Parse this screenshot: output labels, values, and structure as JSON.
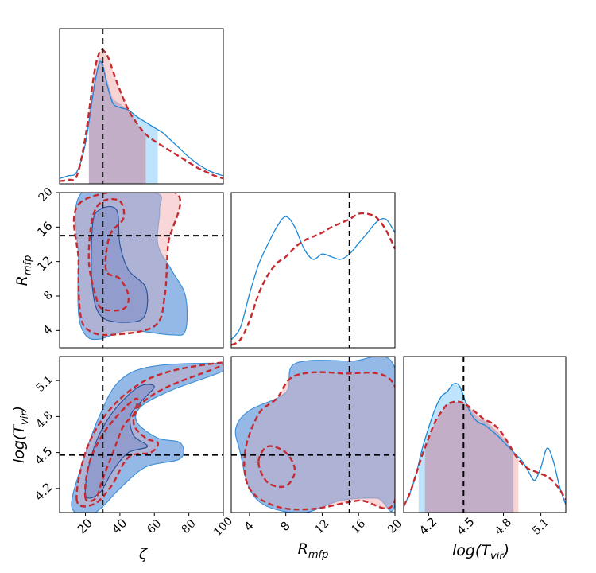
{
  "chart_data": {
    "type": "corner",
    "parameters": [
      {
        "name": "zeta",
        "label": "ζ",
        "truth": 30,
        "range": [
          5,
          100
        ],
        "ticks": [
          20,
          40,
          60,
          80,
          100
        ],
        "tick_labels": [
          "20",
          "40",
          "60",
          "80",
          "100"
        ]
      },
      {
        "name": "R_mfp",
        "label": "R",
        "label_sub": "mfp",
        "truth": 15,
        "range": [
          2,
          20
        ],
        "ticks": [
          4,
          8,
          12,
          16,
          20
        ],
        "tick_labels": [
          "4",
          "8",
          "12",
          "16",
          "20"
        ]
      },
      {
        "name": "log_T_vir",
        "label": "log(T",
        "label_sub": "vir",
        "label_close": ")",
        "truth": 4.48,
        "range": [
          4.0,
          5.3
        ],
        "ticks": [
          4.2,
          4.5,
          4.8,
          5.1
        ],
        "tick_labels": [
          "4.2",
          "4.5",
          "4.8",
          "5.1"
        ]
      }
    ],
    "series": [
      {
        "name": "blue",
        "color": "#1b87d6",
        "fill": "#87cefa",
        "style": "solid"
      },
      {
        "name": "red",
        "color": "#c62a2f",
        "fill": "#f4b6b8",
        "style": "dashed"
      }
    ],
    "marginals": {
      "zeta": {
        "x": [
          5,
          10,
          15,
          20,
          25,
          28,
          30,
          33,
          36,
          40,
          45,
          50,
          55,
          60,
          65,
          70,
          75,
          80,
          85,
          90,
          95,
          100
        ],
        "blue": [
          0.04,
          0.06,
          0.09,
          0.3,
          0.72,
          0.9,
          0.88,
          0.72,
          0.6,
          0.57,
          0.55,
          0.5,
          0.46,
          0.42,
          0.38,
          0.32,
          0.26,
          0.2,
          0.15,
          0.11,
          0.08,
          0.06
        ],
        "red": [
          0.02,
          0.03,
          0.06,
          0.35,
          0.82,
          0.98,
          1.0,
          0.95,
          0.84,
          0.7,
          0.55,
          0.45,
          0.37,
          0.32,
          0.28,
          0.24,
          0.2,
          0.16,
          0.12,
          0.09,
          0.06,
          0.04
        ],
        "blue_interval": [
          22,
          62
        ],
        "red_interval": [
          22,
          55
        ]
      },
      "R_mfp": {
        "x": [
          2,
          3,
          4,
          5,
          6,
          7,
          8,
          9,
          10,
          11,
          12,
          13,
          14,
          15,
          16,
          17,
          18,
          19,
          20
        ],
        "blue": [
          0.06,
          0.15,
          0.4,
          0.62,
          0.77,
          0.9,
          0.98,
          0.9,
          0.74,
          0.66,
          0.7,
          0.68,
          0.66,
          0.7,
          0.78,
          0.86,
          0.94,
          0.96,
          0.86
        ],
        "red": [
          0.02,
          0.06,
          0.2,
          0.4,
          0.54,
          0.63,
          0.68,
          0.75,
          0.8,
          0.83,
          0.86,
          0.9,
          0.93,
          0.96,
          1.0,
          1.0,
          0.97,
          0.88,
          0.74
        ]
      },
      "log_T_vir": {
        "x": [
          4.0,
          4.05,
          4.1,
          4.15,
          4.2,
          4.25,
          4.3,
          4.35,
          4.4,
          4.45,
          4.5,
          4.55,
          4.6,
          4.65,
          4.7,
          4.75,
          4.8,
          4.85,
          4.9,
          4.95,
          5.0,
          5.05,
          5.1,
          5.15,
          5.2,
          5.25,
          5.3
        ],
        "blue": [
          0.05,
          0.15,
          0.3,
          0.5,
          0.66,
          0.8,
          0.9,
          0.94,
          1.0,
          0.98,
          0.85,
          0.75,
          0.7,
          0.68,
          0.64,
          0.6,
          0.55,
          0.5,
          0.45,
          0.4,
          0.32,
          0.25,
          0.35,
          0.5,
          0.4,
          0.2,
          0.06
        ],
        "red": [
          0.05,
          0.15,
          0.3,
          0.45,
          0.58,
          0.7,
          0.78,
          0.84,
          0.86,
          0.86,
          0.84,
          0.8,
          0.76,
          0.72,
          0.7,
          0.66,
          0.6,
          0.52,
          0.44,
          0.38,
          0.34,
          0.32,
          0.3,
          0.28,
          0.24,
          0.18,
          0.1
        ],
        "blue_interval": [
          4.12,
          4.88
        ],
        "red_interval": [
          4.17,
          4.92
        ]
      }
    },
    "contours": {
      "zeta_R_mfp": {
        "blue_outer": [
          [
            18,
            20
          ],
          [
            16,
            12
          ],
          [
            16,
            6
          ],
          [
            20,
            3.5
          ],
          [
            28,
            3
          ],
          [
            45,
            4
          ],
          [
            70,
            3.5
          ],
          [
            78,
            4
          ],
          [
            78,
            8
          ],
          [
            70,
            11
          ],
          [
            62,
            14
          ],
          [
            63,
            18
          ],
          [
            60,
            20
          ]
        ],
        "blue_inner": [
          [
            24,
            16
          ],
          [
            24,
            9
          ],
          [
            30,
            5.5
          ],
          [
            48,
            5
          ],
          [
            55,
            6
          ],
          [
            55,
            9
          ],
          [
            45,
            11
          ],
          [
            40,
            14
          ],
          [
            38,
            18
          ],
          [
            28,
            18
          ]
        ],
        "red_outer": [
          [
            18,
            19
          ],
          [
            16,
            12
          ],
          [
            17,
            6
          ],
          [
            22,
            4
          ],
          [
            35,
            3.5
          ],
          [
            60,
            4.5
          ],
          [
            66,
            8
          ],
          [
            68,
            14
          ],
          [
            72,
            20
          ]
        ],
        "red_inner": [
          [
            24,
            17
          ],
          [
            22,
            12
          ],
          [
            26,
            8
          ],
          [
            30,
            6.5
          ],
          [
            42,
            6.5
          ],
          [
            45,
            8
          ],
          [
            40,
            10
          ],
          [
            32,
            11
          ],
          [
            34,
            15
          ],
          [
            42,
            17
          ],
          [
            40,
            19
          ],
          [
            30,
            19
          ]
        ]
      },
      "zeta_log_T_vir": {
        "blue_outer": [
          [
            12,
            4.05
          ],
          [
            18,
            4.4
          ],
          [
            28,
            4.8
          ],
          [
            40,
            5.1
          ],
          [
            60,
            5.22
          ],
          [
            100,
            5.24
          ],
          [
            100,
            5.18
          ],
          [
            70,
            5.02
          ],
          [
            52,
            4.88
          ],
          [
            50,
            4.75
          ],
          [
            62,
            4.62
          ],
          [
            75,
            4.58
          ],
          [
            75,
            4.45
          ],
          [
            55,
            4.38
          ],
          [
            40,
            4.2
          ],
          [
            30,
            4.05
          ],
          [
            22,
            3.98
          ]
        ],
        "blue_inner": [
          [
            20,
            4.15
          ],
          [
            24,
            4.5
          ],
          [
            34,
            4.8
          ],
          [
            50,
            5.04
          ],
          [
            60,
            5.05
          ],
          [
            52,
            4.92
          ],
          [
            46,
            4.8
          ],
          [
            48,
            4.64
          ],
          [
            56,
            4.55
          ],
          [
            45,
            4.5
          ],
          [
            36,
            4.35
          ],
          [
            28,
            4.16
          ]
        ],
        "red_outer": [
          [
            15,
            4.1
          ],
          [
            20,
            4.5
          ],
          [
            32,
            4.82
          ],
          [
            50,
            5.06
          ],
          [
            70,
            5.18
          ],
          [
            100,
            5.25
          ],
          [
            95,
            5.2
          ],
          [
            68,
            5.05
          ],
          [
            52,
            4.9
          ],
          [
            48,
            4.74
          ],
          [
            55,
            4.62
          ],
          [
            62,
            4.58
          ],
          [
            58,
            4.5
          ],
          [
            45,
            4.46
          ],
          [
            35,
            4.22
          ],
          [
            25,
            4.07
          ]
        ],
        "red_inner": [
          [
            20,
            4.12
          ],
          [
            22,
            4.4
          ],
          [
            30,
            4.65
          ],
          [
            42,
            4.86
          ],
          [
            50,
            4.95
          ],
          [
            48,
            4.82
          ],
          [
            42,
            4.72
          ],
          [
            36,
            4.5
          ],
          [
            30,
            4.28
          ],
          [
            26,
            4.12
          ]
        ]
      },
      "R_mfp_log_T_vir": {
        "blue_outer": [
          [
            3,
            4.5
          ],
          [
            4,
            4.2
          ],
          [
            6,
            4.05
          ],
          [
            10,
            4.0
          ],
          [
            14,
            4.1
          ],
          [
            18,
            4.12
          ],
          [
            20,
            4.08
          ],
          [
            20,
            5.2
          ],
          [
            15,
            5.26
          ],
          [
            9,
            5.24
          ],
          [
            8,
            5.0
          ],
          [
            4,
            4.85
          ],
          [
            2.5,
            4.7
          ]
        ],
        "red_outer": [
          [
            3.5,
            4.5
          ],
          [
            4,
            4.2
          ],
          [
            7,
            4.05
          ],
          [
            11,
            4.03
          ],
          [
            16,
            4.1
          ],
          [
            20,
            4.1
          ],
          [
            20,
            5.05
          ],
          [
            14,
            5.16
          ],
          [
            9,
            5.14
          ],
          [
            7,
            4.95
          ],
          [
            5,
            4.82
          ]
        ],
        "red_inner": [
          [
            5,
            4.42
          ],
          [
            6,
            4.25
          ],
          [
            8,
            4.22
          ],
          [
            9,
            4.35
          ],
          [
            8,
            4.5
          ],
          [
            6,
            4.55
          ]
        ]
      }
    },
    "axis_labels": {
      "zeta": "ζ",
      "R_mfp": "R",
      "R_mfp_sub": "mfp",
      "log_T_vir": "log(T",
      "log_T_vir_sub": "vir",
      "log_T_vir_close": ")"
    },
    "title": ""
  }
}
